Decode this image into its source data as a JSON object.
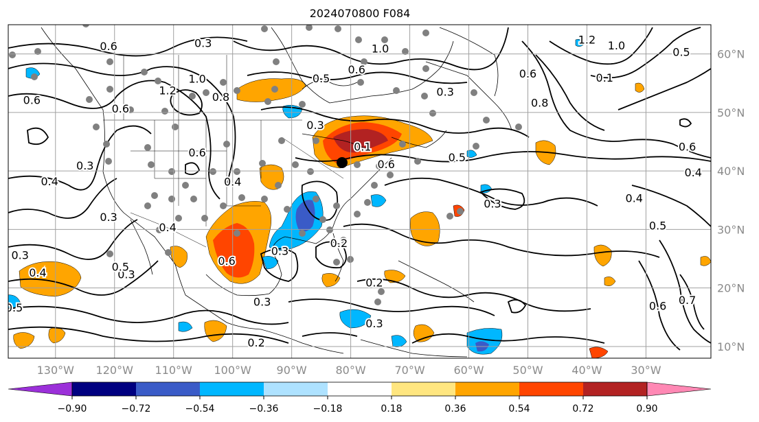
{
  "title": "2024070800 F084",
  "map": {
    "lat_labels": [
      "60°N",
      "50°N",
      "40°N",
      "30°N",
      "20°N",
      "10°N"
    ],
    "lat_values": [
      60,
      50,
      40,
      30,
      20,
      10
    ],
    "lon_labels": [
      "130°W",
      "120°W",
      "110°W",
      "100°W",
      "90°W",
      "80°W",
      "70°W",
      "60°W",
      "50°W",
      "40°W",
      "30°W"
    ],
    "lon_values": [
      -130,
      -120,
      -110,
      -100,
      -90,
      -80,
      -70,
      -60,
      -50,
      -40,
      -30
    ],
    "extent": {
      "lon_min": -138,
      "lon_max": -19,
      "lat_min": 8,
      "lat_max": 65
    },
    "contour_labels": [
      {
        "text": "0.6",
        "lon": -121,
        "lat": 61.2
      },
      {
        "text": "0.3",
        "lon": -105,
        "lat": 61.7
      },
      {
        "text": "1.0",
        "lon": -106,
        "lat": 55.6
      },
      {
        "text": "1.2",
        "lon": -111,
        "lat": 53.6
      },
      {
        "text": "0.8",
        "lon": -102,
        "lat": 52.5
      },
      {
        "text": "0.6",
        "lon": -134,
        "lat": 52.0
      },
      {
        "text": "0.6",
        "lon": -119,
        "lat": 50.5
      },
      {
        "text": "0.5",
        "lon": -85,
        "lat": 55.7
      },
      {
        "text": "0.6",
        "lon": -79,
        "lat": 57.2
      },
      {
        "text": "1.0",
        "lon": -75,
        "lat": 60.8
      },
      {
        "text": "0.3",
        "lon": -64,
        "lat": 53.4
      },
      {
        "text": "0.3",
        "lon": -86,
        "lat": 47.7
      },
      {
        "text": "0.1",
        "lon": -78,
        "lat": 44.0
      },
      {
        "text": "0.6",
        "lon": -74,
        "lat": 41.0
      },
      {
        "text": "0.5",
        "lon": -62,
        "lat": 42.2
      },
      {
        "text": "0.3",
        "lon": -56,
        "lat": 34.3
      },
      {
        "text": "1.2",
        "lon": -40,
        "lat": 62.3
      },
      {
        "text": "1.0",
        "lon": -35,
        "lat": 61.3
      },
      {
        "text": "0.5",
        "lon": -24,
        "lat": 60.2
      },
      {
        "text": "0.6",
        "lon": -50,
        "lat": 56.5
      },
      {
        "text": "0.8",
        "lon": -48,
        "lat": 51.5
      },
      {
        "text": "0.1",
        "lon": -37,
        "lat": 55.8
      },
      {
        "text": "0.6",
        "lon": -23,
        "lat": 44.0
      },
      {
        "text": "0.4",
        "lon": -22,
        "lat": 39.6
      },
      {
        "text": "0.4",
        "lon": -32,
        "lat": 35.2
      },
      {
        "text": "0.5",
        "lon": -28,
        "lat": 30.5
      },
      {
        "text": "0.6",
        "lon": -28,
        "lat": 16.8
      },
      {
        "text": "0.7",
        "lon": -23,
        "lat": 17.8
      },
      {
        "text": "0.4",
        "lon": -131,
        "lat": 38.1
      },
      {
        "text": "0.3",
        "lon": -125,
        "lat": 40.8
      },
      {
        "text": "0.3",
        "lon": -136,
        "lat": 25.5
      },
      {
        "text": "0.4",
        "lon": -133,
        "lat": 22.5
      },
      {
        "text": "0.3",
        "lon": -121,
        "lat": 32.0
      },
      {
        "text": "0.3",
        "lon": -118,
        "lat": 22.2
      },
      {
        "text": "0.5",
        "lon": -119,
        "lat": 23.5
      },
      {
        "text": "0.4",
        "lon": -111,
        "lat": 30.2
      },
      {
        "text": "0.5",
        "lon": -137,
        "lat": 16.5
      },
      {
        "text": "0.6",
        "lon": -101,
        "lat": 24.5
      },
      {
        "text": "0.3",
        "lon": -92,
        "lat": 26.2
      },
      {
        "text": "0.3",
        "lon": -95,
        "lat": 17.5
      },
      {
        "text": "0.2",
        "lon": -82,
        "lat": 27.5
      },
      {
        "text": "0.2",
        "lon": -76,
        "lat": 20.8
      },
      {
        "text": "0.3",
        "lon": -76,
        "lat": 13.8
      },
      {
        "text": "0.2",
        "lon": -96,
        "lat": 10.5
      },
      {
        "text": "0.6",
        "lon": -106,
        "lat": 43.0
      },
      {
        "text": "0.4",
        "lon": -100,
        "lat": 38.0
      }
    ]
  },
  "colorbar": {
    "tick_labels": [
      "−0.90",
      "−0.72",
      "−0.54",
      "−0.36",
      "−0.18",
      "0.18",
      "0.36",
      "0.54",
      "0.72",
      "0.90"
    ],
    "colors": [
      "#9b30d9",
      "#000080",
      "#3a5bc7",
      "#00b7ff",
      "#aee2ff",
      "#ffffff",
      "#ffe680",
      "#ffa500",
      "#ff4500",
      "#b22222",
      "#ff88b4"
    ],
    "low_color": "#9b30d9",
    "high_color": "#ff88b4"
  },
  "colors": {
    "positive_mid": "#ffa500",
    "positive_high": "#ff4500",
    "positive_max": "#b22222",
    "negative_mid": "#00b7ff",
    "negative_high": "#3a5bc7",
    "station_dot": "#808080",
    "grid": "#a0a0a0",
    "axis_label": "#8a8a8a"
  }
}
